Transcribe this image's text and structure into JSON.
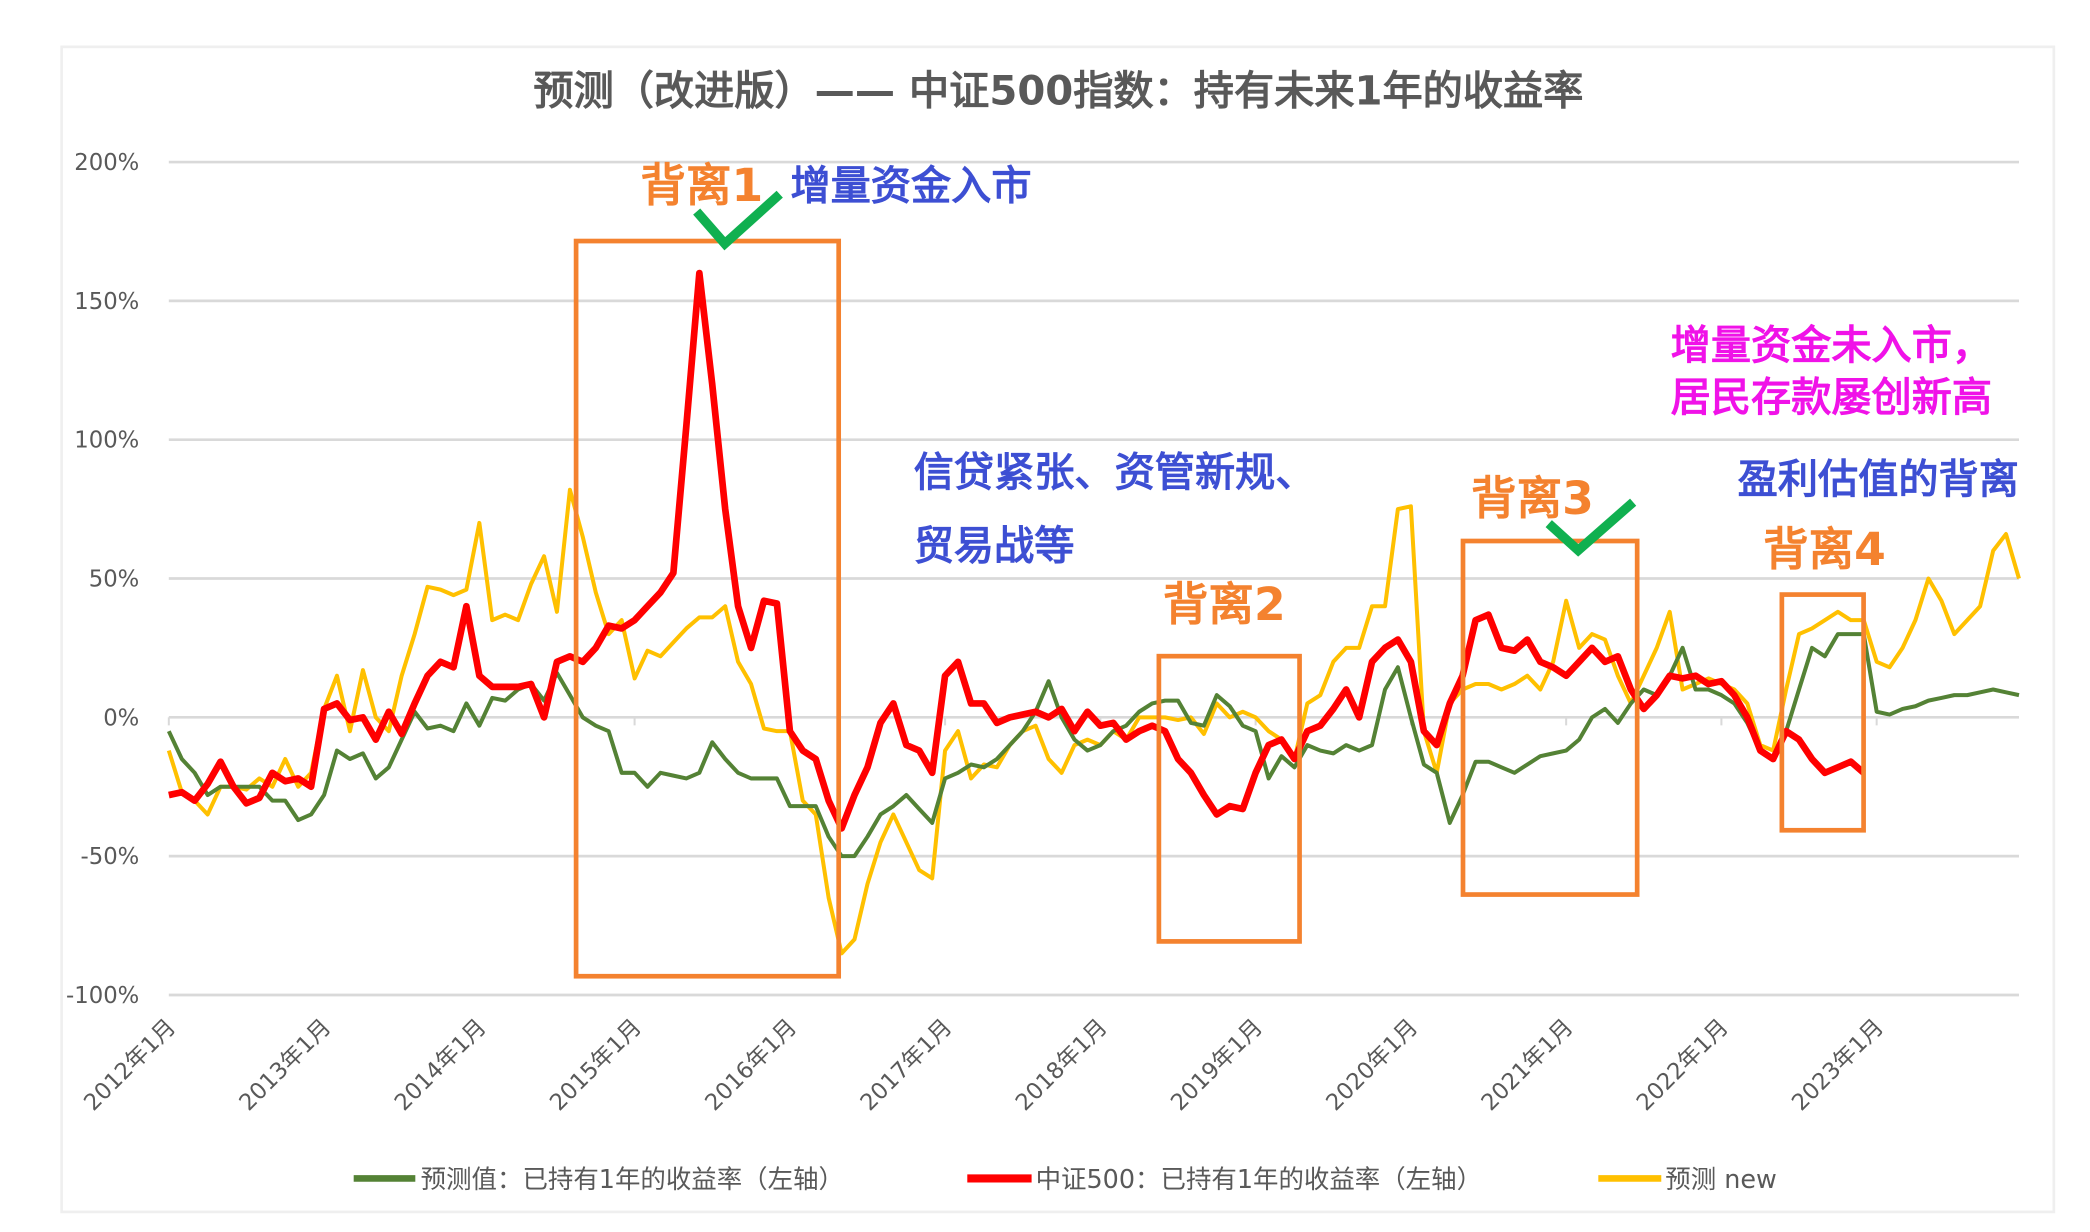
{
  "chart_data": {
    "type": "line",
    "title": "预测（改进版）—— 中证500指数：持有未来1年的收益率",
    "xlabel": "",
    "ylabel": "",
    "ylim": [
      -100,
      200
    ],
    "yticks": [
      200,
      150,
      100,
      50,
      0,
      -50,
      -100
    ],
    "ytick_labels": [
      "200%",
      "150%",
      "100%",
      "50%",
      "0%",
      "-50%",
      "-100%"
    ],
    "x_start": "2012-01",
    "x_frequency": "monthly",
    "xtick_labels": [
      "2012年1月",
      "2013年1月",
      "2014年1月",
      "2015年1月",
      "2016年1月",
      "2017年1月",
      "2018年1月",
      "2019年1月",
      "2020年1月",
      "2021年1月",
      "2022年1月",
      "2023年1月"
    ],
    "grid": true,
    "legend_position": "bottom",
    "series": [
      {
        "name": "预测值：已持有1年的收益率（左轴）",
        "color": "#548235",
        "values": [
          -5,
          -15,
          -20,
          -28,
          -25,
          -25,
          -25,
          -25,
          -30,
          -30,
          -37,
          -35,
          -28,
          -12,
          -15,
          -13,
          -22,
          -18,
          -8,
          2,
          -4,
          -3,
          -5,
          5,
          -3,
          7,
          6,
          10,
          12,
          6,
          16,
          8,
          0,
          -3,
          -5,
          -20,
          -20,
          -25,
          -20,
          -21,
          -22,
          -20,
          -9,
          -15,
          -20,
          -22,
          -22,
          -22,
          -32,
          -32,
          -32,
          -43,
          -50,
          -50,
          -43,
          -35,
          -32,
          -28,
          -33,
          -38,
          -22,
          -20,
          -17,
          -18,
          -15,
          -10,
          -5,
          2,
          13,
          0,
          -8,
          -12,
          -10,
          -5,
          -3,
          2,
          5,
          6,
          6,
          -2,
          -3,
          8,
          4,
          -3,
          -5,
          -22,
          -14,
          -18,
          -10,
          -12,
          -13,
          -10,
          -12,
          -10,
          10,
          18,
          0,
          -17,
          -20,
          -38,
          -28,
          -16,
          -16,
          -18,
          -20,
          -17,
          -14,
          -13,
          -12,
          -8,
          0,
          3,
          -2,
          5,
          10,
          8,
          15,
          25,
          10,
          10,
          8,
          5,
          -2,
          -12,
          -15,
          -5,
          10,
          25,
          22,
          30,
          30,
          30,
          2,
          1,
          3,
          4,
          6,
          7,
          8,
          8,
          9,
          10,
          9,
          8
        ]
      },
      {
        "name": "中证500：已持有1年的收益率（左轴）",
        "color": "#ff0000",
        "values": [
          -28,
          -27,
          -30,
          -24,
          -16,
          -25,
          -31,
          -29,
          -20,
          -23,
          -22,
          -25,
          3,
          5,
          -1,
          0,
          -8,
          2,
          -6,
          5,
          15,
          20,
          18,
          40,
          15,
          11,
          11,
          11,
          12,
          0,
          20,
          22,
          20,
          25,
          33,
          32,
          35,
          40,
          45,
          52,
          105,
          160,
          120,
          75,
          40,
          25,
          42,
          41,
          -5,
          -12,
          -15,
          -30,
          -40,
          -28,
          -18,
          -2,
          5,
          -10,
          -12,
          -20,
          15,
          20,
          5,
          5,
          -2,
          0,
          1,
          2,
          0,
          3,
          -5,
          2,
          -3,
          -2,
          -8,
          -5,
          -3,
          -5,
          -15,
          -20,
          -28,
          -35,
          -32,
          -33,
          -20,
          -10,
          -8,
          -15,
          -5,
          -3,
          3,
          10,
          0,
          20,
          25,
          28,
          20,
          -5,
          -10,
          5,
          15,
          35,
          37,
          25,
          24,
          28,
          20,
          18,
          15,
          20,
          25,
          20,
          22,
          10,
          3,
          8,
          15,
          14,
          15,
          12,
          13,
          8,
          0,
          -12,
          -15,
          -5,
          -8,
          -15,
          -20,
          -18,
          -16,
          -20,
          null,
          null,
          null,
          null,
          null,
          null,
          null,
          null,
          null,
          null,
          null,
          null
        ]
      },
      {
        "name": "预测 new",
        "color": "#ffc000",
        "values": [
          -12,
          -27,
          -30,
          -35,
          -25,
          -25,
          -26,
          -22,
          -25,
          -15,
          -25,
          -20,
          3,
          15,
          -5,
          17,
          0,
          -5,
          15,
          30,
          47,
          46,
          44,
          46,
          70,
          35,
          37,
          35,
          48,
          58,
          38,
          82,
          65,
          45,
          30,
          35,
          14,
          24,
          22,
          27,
          32,
          36,
          36,
          40,
          20,
          12,
          -4,
          -5,
          -5,
          -30,
          -35,
          -65,
          -85,
          -80,
          -60,
          -45,
          -35,
          -45,
          -55,
          -58,
          -12,
          -5,
          -22,
          -17,
          -18,
          -10,
          -5,
          -3,
          -15,
          -20,
          -10,
          -8,
          -10,
          -5,
          -8,
          0,
          0,
          0,
          -1,
          0,
          -6,
          5,
          0,
          2,
          0,
          -5,
          -8,
          -15,
          5,
          8,
          20,
          25,
          25,
          40,
          40,
          75,
          76,
          -5,
          -20,
          5,
          10,
          12,
          12,
          10,
          12,
          15,
          10,
          20,
          42,
          25,
          30,
          28,
          15,
          5,
          15,
          25,
          38,
          10,
          12,
          14,
          12,
          10,
          5,
          -10,
          -12,
          10,
          30,
          32,
          35,
          38,
          35,
          35,
          20,
          18,
          25,
          35,
          50,
          42,
          30,
          35,
          40,
          60,
          66,
          50
        ]
      }
    ]
  },
  "annotations": {
    "divergence_1": "背离1",
    "divergence_2": "背离2",
    "divergence_3": "背离3",
    "divergence_4": "背离4",
    "incremental_funds": "增量资金入市",
    "credit_line1": "信贷紧张、资管新规、",
    "credit_line2": "贸易战等",
    "no_funds_line1": "增量资金未入市，",
    "no_funds_line2": "居民存款屡创新高",
    "earnings_valuation": "盈利估值的背离"
  },
  "colors": {
    "box": "#f4822f",
    "check": "#10b050",
    "grid": "#d9d9d9"
  }
}
